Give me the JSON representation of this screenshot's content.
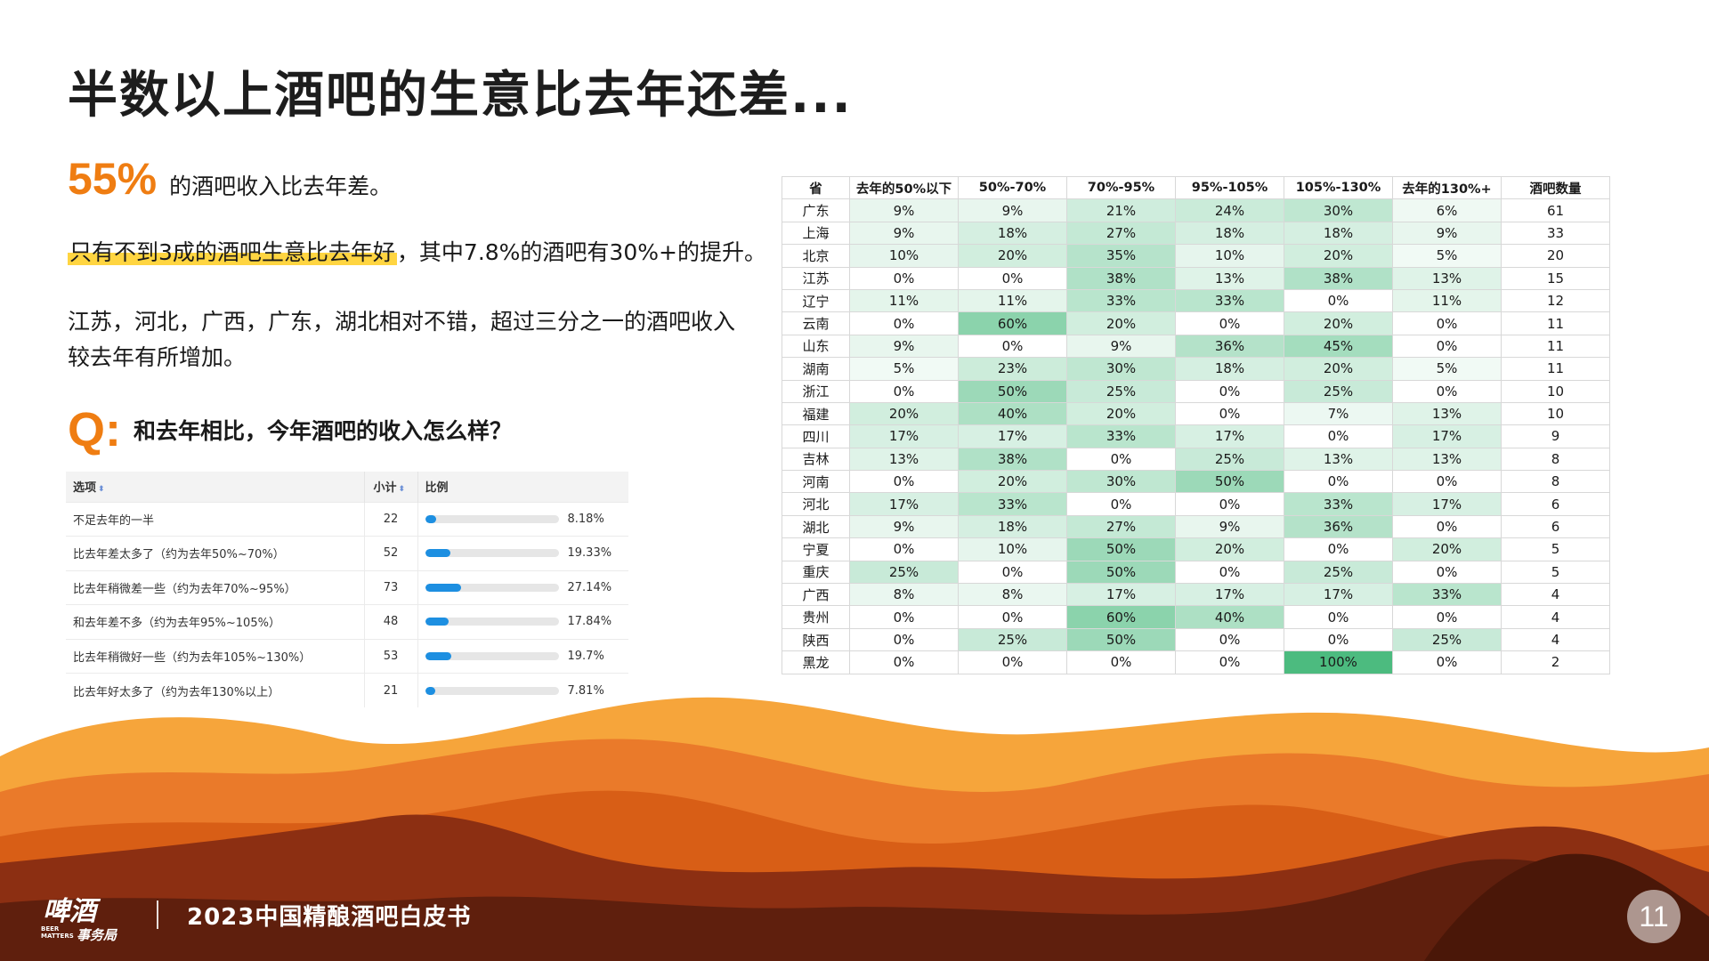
{
  "title": "半数以上酒吧的生意比去年还差...",
  "stat": {
    "big": "55%",
    "text": "的酒吧收入比去年差。"
  },
  "para1": {
    "highlight": "只有不到3成的酒吧生意比去年好",
    "rest": "，其中7.8%的酒吧有30%+的提升。"
  },
  "para2": {
    "line1": "江苏，河北，广西，广东，湖北相对不错，超过三分之一的酒吧收入",
    "line2": "较去年有所增加。"
  },
  "question": {
    "mark": "Q:",
    "text": "和去年相比，今年酒吧的收入怎么样？"
  },
  "survey": {
    "headers": {
      "option": "选项",
      "count": "小计",
      "ratio": "比例"
    },
    "rows": [
      {
        "label": "不足去年的一半",
        "count": "22",
        "pct": "8.18%",
        "value": 8.18
      },
      {
        "label": "比去年差太多了（约为去年50%~70%）",
        "count": "52",
        "pct": "19.33%",
        "value": 19.33
      },
      {
        "label": "比去年稍微差一些（约为去年70%~95%）",
        "count": "73",
        "pct": "27.14%",
        "value": 27.14
      },
      {
        "label": "和去年差不多（约为去年95%~105%）",
        "count": "48",
        "pct": "17.84%",
        "value": 17.84
      },
      {
        "label": "比去年稍微好一些（约为去年105%~130%）",
        "count": "53",
        "pct": "19.7%",
        "value": 19.7
      },
      {
        "label": "比去年好太多了（约为去年130%以上）",
        "count": "21",
        "pct": "7.81%",
        "value": 7.81
      }
    ]
  },
  "heat_table": {
    "headers": [
      "省",
      "去年的50%以下",
      "50%-70%",
      "70%-95%",
      "95%-105%",
      "105%-130%",
      "去年的130%+",
      "酒吧数量"
    ],
    "rows": [
      [
        "广东",
        "9%",
        "9%",
        "21%",
        "24%",
        "30%",
        "6%",
        "61"
      ],
      [
        "上海",
        "9%",
        "18%",
        "27%",
        "18%",
        "18%",
        "9%",
        "33"
      ],
      [
        "北京",
        "10%",
        "20%",
        "35%",
        "10%",
        "20%",
        "5%",
        "20"
      ],
      [
        "江苏",
        "0%",
        "0%",
        "38%",
        "13%",
        "38%",
        "13%",
        "15"
      ],
      [
        "辽宁",
        "11%",
        "11%",
        "33%",
        "33%",
        "0%",
        "11%",
        "12"
      ],
      [
        "云南",
        "0%",
        "60%",
        "20%",
        "0%",
        "20%",
        "0%",
        "11"
      ],
      [
        "山东",
        "9%",
        "0%",
        "9%",
        "36%",
        "45%",
        "0%",
        "11"
      ],
      [
        "湖南",
        "5%",
        "23%",
        "30%",
        "18%",
        "20%",
        "5%",
        "11"
      ],
      [
        "浙江",
        "0%",
        "50%",
        "25%",
        "0%",
        "25%",
        "0%",
        "10"
      ],
      [
        "福建",
        "20%",
        "40%",
        "20%",
        "0%",
        "7%",
        "13%",
        "10"
      ],
      [
        "四川",
        "17%",
        "17%",
        "33%",
        "17%",
        "0%",
        "17%",
        "9"
      ],
      [
        "吉林",
        "13%",
        "38%",
        "0%",
        "25%",
        "13%",
        "13%",
        "8"
      ],
      [
        "河南",
        "0%",
        "20%",
        "30%",
        "50%",
        "0%",
        "0%",
        "8"
      ],
      [
        "河北",
        "17%",
        "33%",
        "0%",
        "0%",
        "33%",
        "17%",
        "6"
      ],
      [
        "湖北",
        "9%",
        "18%",
        "27%",
        "9%",
        "36%",
        "0%",
        "6"
      ],
      [
        "宁夏",
        "0%",
        "10%",
        "50%",
        "20%",
        "0%",
        "20%",
        "5"
      ],
      [
        "重庆",
        "25%",
        "0%",
        "50%",
        "0%",
        "25%",
        "0%",
        "5"
      ],
      [
        "广西",
        "8%",
        "8%",
        "17%",
        "17%",
        "17%",
        "33%",
        "4"
      ],
      [
        "贵州",
        "0%",
        "0%",
        "60%",
        "40%",
        "0%",
        "0%",
        "4"
      ],
      [
        "陕西",
        "0%",
        "25%",
        "50%",
        "0%",
        "0%",
        "25%",
        "4"
      ],
      [
        "黑龙",
        "0%",
        "0%",
        "0%",
        "0%",
        "100%",
        "0%",
        "2"
      ]
    ]
  },
  "footer": {
    "logo_text": "啤酒事务局 BEER MATTERS",
    "title": "2023中国精酿酒吧白皮书",
    "page": "11"
  },
  "colors": {
    "accent": "#ef7d12",
    "highlight": "#ffd541",
    "bar": "#1d8fe1",
    "heat_max": "#4cbb7f"
  }
}
